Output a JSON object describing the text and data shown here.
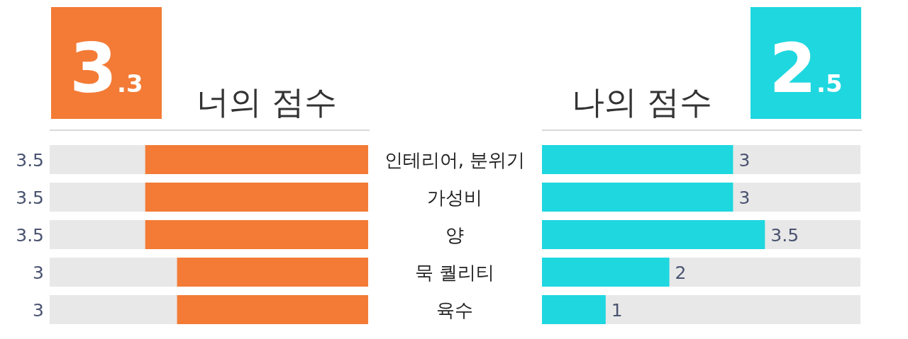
{
  "chart_data": [
    {
      "type": "bar",
      "orientation": "horizontal",
      "title": "너의 점수",
      "annotations": [
        "3.3"
      ],
      "categories": [
        "인테리어, 분위기",
        "가성비",
        "양",
        "묵 퀄리티",
        "육수"
      ],
      "values": [
        3.5,
        3.5,
        3.5,
        3,
        3
      ],
      "color": "#f37b36",
      "xlim": [
        5,
        0
      ],
      "data_labels": true
    },
    {
      "type": "bar",
      "orientation": "horizontal",
      "title": "나의 점수",
      "annotations": [
        "2.5"
      ],
      "categories": [
        null,
        null,
        null,
        null,
        null
      ],
      "values": [
        3,
        3,
        3.5,
        2,
        1
      ],
      "color": "#1fd7df",
      "xlim": [
        0,
        5
      ],
      "data_labels": true
    }
  ]
}
